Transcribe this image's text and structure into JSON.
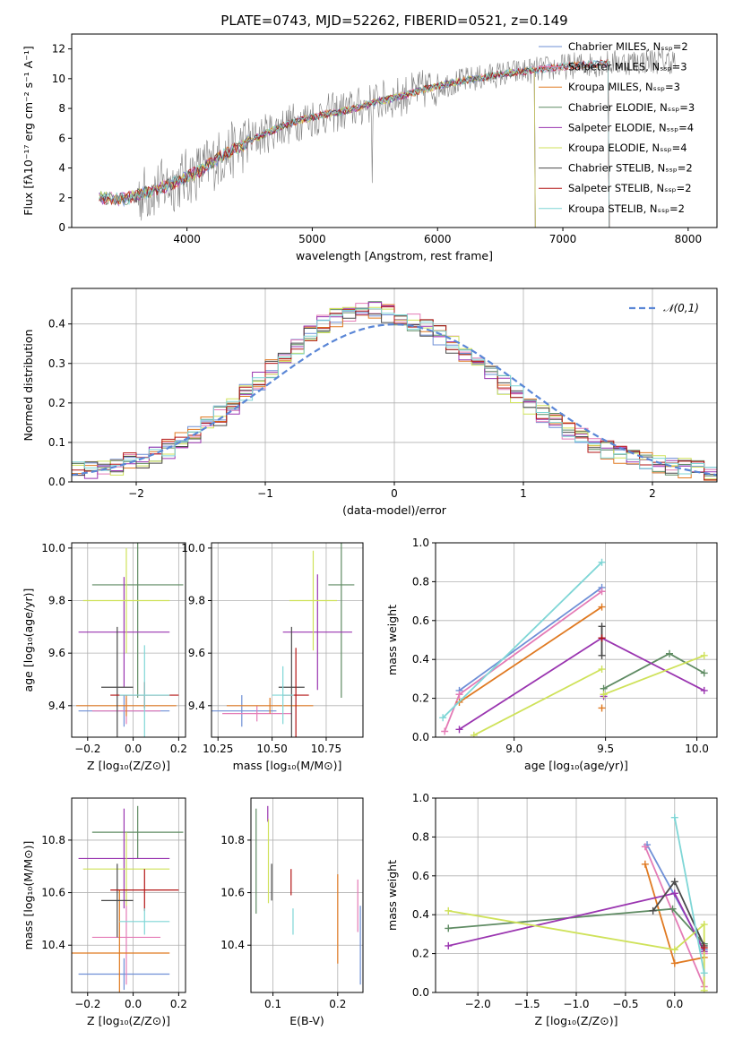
{
  "figure": {
    "title": "PLATE=0743, MJD=52262, FIBERID=0521, z=0.149"
  },
  "colors": {
    "chabrier_miles": "#6e8fd6",
    "salpeter_miles": "#e47bb6",
    "kroupa_miles": "#e07a22",
    "chabrier_elodie": "#5f8b63",
    "salpeter_elodie": "#9a35b0",
    "kroupa_elodie": "#cfe25a",
    "chabrier_stelib": "#4a4a4a",
    "salpeter_stelib": "#b31414",
    "kroupa_stelib": "#7fd6d6",
    "data_gray": "#7f7f7f",
    "gaussian": "#5a86d6"
  },
  "chart_data": [
    {
      "id": "spectrum",
      "type": "line",
      "title": "PLATE=0743, MJD=52262, FIBERID=0521, z=0.149",
      "xlabel": "wavelength [Angstrom, rest frame]",
      "ylabel": "Flux [fλ10⁻¹⁷ erg cm⁻² s⁻¹ A⁻¹]",
      "xlim": [
        3080,
        8230
      ],
      "ylim": [
        0,
        13
      ],
      "xticks": [
        4000,
        5000,
        6000,
        7000,
        8000
      ],
      "yticks": [
        0,
        2,
        4,
        6,
        8,
        10,
        12
      ],
      "legend_placement": "upper-right",
      "legend": [
        "Chabrier MILES, Nₛₛₚ=2",
        "Salpeter MILES, Nₛₛₚ=3",
        "Kroupa MILES, Nₛₛₚ=3",
        "Chabrier ELODIE, Nₛₛₚ=3",
        "Salpeter ELODIE, Nₛₛₚ=4",
        "Kroupa ELODIE, Nₛₛₚ=4",
        "Chabrier STELIB, Nₛₛₚ=2",
        "Salpeter STELIB, Nₛₛₚ=2",
        "Kroupa STELIB, Nₛₛₚ=2"
      ],
      "continuum": {
        "x": [
          3300,
          3500,
          3700,
          3900,
          4100,
          4300,
          4500,
          4700,
          4900,
          5100,
          5300,
          5500,
          5700,
          5900,
          6100,
          6300,
          6500,
          6700,
          6900,
          7100,
          7300,
          7500,
          7700,
          7900
        ],
        "y": [
          2.0,
          1.9,
          2.4,
          3.0,
          3.8,
          4.9,
          5.8,
          6.6,
          7.2,
          7.6,
          7.9,
          8.4,
          8.8,
          9.3,
          9.7,
          10.0,
          10.3,
          10.5,
          10.7,
          10.9,
          11.0,
          11.1,
          11.2,
          11.2
        ]
      },
      "models_end_x": [
        7370,
        7370,
        7370,
        6780,
        6780,
        6780,
        7370,
        7370,
        7370
      ]
    },
    {
      "id": "residuals",
      "type": "line",
      "xlabel": "(data-model)/error",
      "ylabel": "Normed distribution",
      "xlim": [
        -2.5,
        2.5
      ],
      "ylim": [
        0,
        0.49
      ],
      "xticks": [
        -2,
        -1,
        0,
        1,
        2
      ],
      "yticks": [
        0.0,
        0.1,
        0.2,
        0.3,
        0.4
      ],
      "legend_placement": "upper-right",
      "series": [
        {
          "name": "𝒩(0,1)",
          "mu": 0,
          "sigma": 1
        }
      ],
      "hist_bins": 50
    },
    {
      "id": "age_vs_z",
      "type": "scatter",
      "xlabel": "Z [log₁₀(Z/Z⊙)]",
      "ylabel": "age  [log₁₀(age/yr)]",
      "xlim": [
        -0.27,
        0.23
      ],
      "ylim": [
        9.28,
        10.02
      ],
      "xticks": [
        -0.2,
        0.0,
        0.2
      ],
      "yticks": [
        9.4,
        9.6,
        9.8,
        10.0
      ],
      "points": [
        {
          "x": -0.04,
          "y": 9.38,
          "xerr": 0.2,
          "yerr": 0.06,
          "c": "chabrier_miles"
        },
        {
          "x": -0.03,
          "y": 9.38,
          "xerr": 0.15,
          "yerr": 0.05,
          "c": "salpeter_miles"
        },
        {
          "x": -0.03,
          "y": 9.4,
          "xerr": 0.22,
          "yerr": 0.04,
          "c": "kroupa_miles"
        },
        {
          "x": 0.02,
          "y": 9.86,
          "xerr": 0.2,
          "yerr": 0.43,
          "c": "chabrier_elodie"
        },
        {
          "x": -0.04,
          "y": 9.68,
          "xerr": 0.2,
          "yerr": 0.21,
          "c": "salpeter_elodie"
        },
        {
          "x": -0.03,
          "y": 9.8,
          "xerr": 0.19,
          "yerr": 0.2,
          "c": "kroupa_elodie"
        },
        {
          "x": -0.07,
          "y": 9.47,
          "xerr": 0.07,
          "yerr": 0.23,
          "c": "chabrier_stelib"
        },
        {
          "x": 0.05,
          "y": 9.44,
          "xerr": 0.15,
          "yerr": 0.05,
          "c": "salpeter_stelib"
        },
        {
          "x": 0.05,
          "y": 9.44,
          "xerr": 0.11,
          "yerr": 0.19,
          "c": "kroupa_stelib"
        }
      ]
    },
    {
      "id": "age_vs_mass",
      "type": "scatter",
      "xlabel": "mass [log₁₀(M/M⊙)]",
      "ylabel": "",
      "xlim": [
        10.22,
        10.92
      ],
      "ylim": [
        9.28,
        10.02
      ],
      "xticks": [
        10.25,
        10.5,
        10.75
      ],
      "yticks": [
        9.4,
        9.6,
        9.8,
        10.0
      ],
      "points": [
        {
          "x": 10.36,
          "y": 9.38,
          "xerr": 0.16,
          "yerr": 0.06,
          "c": "chabrier_miles"
        },
        {
          "x": 10.43,
          "y": 9.37,
          "xerr": 0.16,
          "yerr": 0.03,
          "c": "salpeter_miles"
        },
        {
          "x": 10.49,
          "y": 9.4,
          "xerr": 0.2,
          "yerr": 0.03,
          "c": "kroupa_miles"
        },
        {
          "x": 10.82,
          "y": 9.86,
          "xerr": 0.06,
          "yerr": 0.43,
          "c": "chabrier_elodie"
        },
        {
          "x": 10.71,
          "y": 9.68,
          "xerr": 0.16,
          "yerr": 0.22,
          "c": "salpeter_elodie"
        },
        {
          "x": 10.69,
          "y": 9.8,
          "xerr": 0.11,
          "yerr": 0.19,
          "c": "kroupa_elodie"
        },
        {
          "x": 10.59,
          "y": 9.47,
          "xerr": 0.06,
          "yerr": 0.23,
          "c": "chabrier_stelib"
        },
        {
          "x": 10.61,
          "y": 9.44,
          "xerr": 0.06,
          "yerr": 0.18,
          "c": "salpeter_stelib"
        },
        {
          "x": 10.55,
          "y": 9.44,
          "xerr": 0.05,
          "yerr": 0.11,
          "c": "kroupa_stelib"
        }
      ]
    },
    {
      "id": "weight_vs_age",
      "type": "line",
      "xlabel": "age  [log₁₀(age/yr)]",
      "ylabel": "mass weight",
      "xlim": [
        8.57,
        10.11
      ],
      "ylim": [
        0,
        1
      ],
      "xticks": [
        9.0,
        9.5,
        10.0
      ],
      "yticks": [
        0.0,
        0.2,
        0.4,
        0.6,
        0.8,
        1.0
      ],
      "series": [
        {
          "c": "chabrier_miles",
          "x": [
            8.7,
            9.48
          ],
          "y": [
            0.24,
            0.77
          ]
        },
        {
          "c": "salpeter_miles",
          "x": [
            8.62,
            8.7,
            9.48
          ],
          "y": [
            0.03,
            0.22,
            0.75
          ]
        },
        {
          "c": "kroupa_miles",
          "x": [
            8.7,
            9.48
          ],
          "y": [
            0.18,
            0.67
          ],
          "extra": [
            [
              9.48,
              0.15
            ]
          ]
        },
        {
          "c": "chabrier_elodie",
          "x": [
            9.49,
            9.85,
            10.04
          ],
          "y": [
            0.25,
            0.43,
            0.33
          ]
        },
        {
          "c": "salpeter_elodie",
          "x": [
            8.7,
            9.48,
            10.04
          ],
          "y": [
            0.04,
            0.51,
            0.24
          ],
          "extra": [
            [
              9.49,
              0.21
            ]
          ]
        },
        {
          "c": "kroupa_elodie",
          "x": [
            8.78,
            9.48
          ],
          "y": [
            0.01,
            0.35
          ],
          "extra2": {
            "x": [
              9.49,
              10.04
            ],
            "y": [
              0.22,
              0.42
            ]
          }
        },
        {
          "c": "chabrier_stelib",
          "x": [
            9.48,
            9.48
          ],
          "y": [
            0.42,
            0.57
          ]
        },
        {
          "c": "salpeter_stelib",
          "x": [
            9.48
          ],
          "y": [
            0.51
          ]
        },
        {
          "c": "kroupa_stelib",
          "x": [
            8.61,
            9.48
          ],
          "y": [
            0.1,
            0.9
          ]
        }
      ]
    },
    {
      "id": "mass_vs_z",
      "type": "scatter",
      "xlabel": "Z [log₁₀(Z/Z⊙)]",
      "ylabel": "mass [log₁₀(M/M⊙)]",
      "xlim": [
        -0.27,
        0.23
      ],
      "ylim": [
        10.22,
        10.96
      ],
      "xticks": [
        -0.2,
        0.0,
        0.2
      ],
      "yticks": [
        10.4,
        10.6,
        10.8
      ],
      "points": [
        {
          "x": -0.04,
          "y": 10.29,
          "xerr": 0.2,
          "yerr": 0.06,
          "c": "chabrier_miles"
        },
        {
          "x": -0.03,
          "y": 10.43,
          "xerr": 0.15,
          "yerr": 0.18,
          "c": "salpeter_miles"
        },
        {
          "x": -0.06,
          "y": 10.37,
          "xerr": 0.22,
          "yerr": 0.24,
          "c": "kroupa_miles"
        },
        {
          "x": 0.02,
          "y": 10.83,
          "xerr": 0.2,
          "yerr": 0.1,
          "c": "chabrier_elodie"
        },
        {
          "x": -0.04,
          "y": 10.73,
          "xerr": 0.2,
          "yerr": 0.19,
          "c": "salpeter_elodie"
        },
        {
          "x": -0.03,
          "y": 10.69,
          "xerr": 0.19,
          "yerr": 0.14,
          "c": "kroupa_elodie"
        },
        {
          "x": -0.07,
          "y": 10.57,
          "xerr": 0.07,
          "yerr": 0.14,
          "c": "chabrier_stelib"
        },
        {
          "x": 0.05,
          "y": 10.61,
          "xerr": 0.15,
          "yerr": 0.08,
          "c": "salpeter_stelib"
        },
        {
          "x": 0.05,
          "y": 10.49,
          "xerr": 0.11,
          "yerr": 0.05,
          "c": "kroupa_stelib"
        }
      ]
    },
    {
      "id": "mass_vs_ebv",
      "type": "scatter",
      "xlabel": "E(B-V)",
      "ylabel": "",
      "xlim": [
        0.066,
        0.239
      ],
      "ylim": [
        10.22,
        10.96
      ],
      "xticks": [
        0.1,
        0.2
      ],
      "yticks": [
        10.4,
        10.6,
        10.8
      ],
      "points": [
        {
          "x": 0.235,
          "y": 10.4,
          "yerr": 0.15,
          "c": "chabrier_miles"
        },
        {
          "x": 0.231,
          "y": 10.55,
          "yerr": 0.1,
          "c": "salpeter_miles"
        },
        {
          "x": 0.2,
          "y": 10.5,
          "yerr": 0.17,
          "c": "kroupa_miles"
        },
        {
          "x": 0.074,
          "y": 10.72,
          "yerr": 0.2,
          "c": "chabrier_elodie"
        },
        {
          "x": 0.092,
          "y": 10.9,
          "yerr": 0.03,
          "c": "salpeter_elodie"
        },
        {
          "x": 0.093,
          "y": 10.72,
          "yerr": 0.16,
          "c": "kroupa_elodie"
        },
        {
          "x": 0.098,
          "y": 10.64,
          "yerr": 0.07,
          "c": "chabrier_stelib"
        },
        {
          "x": 0.128,
          "y": 10.64,
          "yerr": 0.05,
          "c": "salpeter_stelib"
        },
        {
          "x": 0.131,
          "y": 10.49,
          "yerr": 0.05,
          "c": "kroupa_stelib"
        }
      ]
    },
    {
      "id": "weight_vs_z",
      "type": "line",
      "xlabel": "Z [log₁₀(Z/Z⊙)]",
      "ylabel": "mass weight",
      "xlim": [
        -2.43,
        0.43
      ],
      "ylim": [
        0,
        1
      ],
      "xticks": [
        -2.0,
        -1.5,
        -1.0,
        -0.5,
        0.0
      ],
      "yticks": [
        0.0,
        0.2,
        0.4,
        0.6,
        0.8,
        1.0
      ],
      "series": [
        {
          "c": "chabrier_miles",
          "x": [
            -0.28,
            0.3
          ],
          "y": [
            0.76,
            0.22
          ]
        },
        {
          "c": "salpeter_miles",
          "x": [
            -0.3,
            0.3,
            0.3
          ],
          "y": [
            0.75,
            0.03,
            0.2
          ]
        },
        {
          "c": "kroupa_miles",
          "x": [
            -0.3,
            0.0,
            0.3
          ],
          "y": [
            0.66,
            0.15,
            0.18
          ]
        },
        {
          "c": "chabrier_elodie",
          "x": [
            -2.3,
            -0.02,
            0.3
          ],
          "y": [
            0.33,
            0.43,
            0.25
          ]
        },
        {
          "c": "salpeter_elodie",
          "x": [
            -2.3,
            0.0,
            0.3
          ],
          "y": [
            0.24,
            0.51,
            0.21
          ]
        },
        {
          "c": "kroupa_elodie",
          "x": [
            -2.3,
            0.0,
            0.3,
            0.3
          ],
          "y": [
            0.42,
            0.22,
            0.35,
            0.01
          ]
        },
        {
          "c": "chabrier_stelib",
          "x": [
            -0.22,
            0.0,
            0.3
          ],
          "y": [
            0.42,
            0.57,
            0.24
          ]
        },
        {
          "c": "salpeter_stelib",
          "x": [
            0.3
          ],
          "y": [
            0.23
          ]
        },
        {
          "c": "kroupa_stelib",
          "x": [
            0.0,
            0.3
          ],
          "y": [
            0.9,
            0.1
          ]
        }
      ]
    }
  ],
  "panels_order": [
    "chabrier_miles",
    "salpeter_miles",
    "kroupa_miles",
    "chabrier_elodie",
    "salpeter_elodie",
    "kroupa_elodie",
    "chabrier_stelib",
    "salpeter_stelib",
    "kroupa_stelib"
  ]
}
